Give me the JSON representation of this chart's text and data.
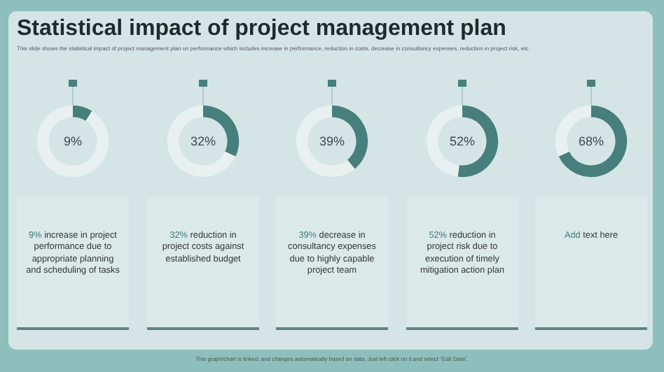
{
  "chart_data": [
    {
      "type": "other",
      "title": "Statistical impact of project management plan",
      "subtitle": "This slide shows the statistical impact of project management plan on performance which includes increase in performance, reduction in costs, decrease in consultancy expenses, reduction in project risk, etc.",
      "annotations": [
        "This graph/chart is linked, and changes automatically based on data. Just left click on it and select “Edit Data”."
      ]
    },
    {
      "type": "donut",
      "categories": [
        null,
        null
      ],
      "values": [
        9,
        91
      ],
      "colors": [
        "#467f7c",
        "#e8f0f0"
      ],
      "value_labels": [
        "9%",
        null
      ],
      "annotations": [
        "9% increase in project performance due to appropriate planning and scheduling of tasks"
      ]
    },
    {
      "type": "donut",
      "categories": [
        null,
        null
      ],
      "values": [
        32,
        68
      ],
      "colors": [
        "#467f7c",
        "#e8f0f0"
      ],
      "value_labels": [
        "32%",
        null
      ],
      "annotations": [
        "32% reduction in project costs against established budget"
      ]
    },
    {
      "type": "donut",
      "categories": [
        null,
        null
      ],
      "values": [
        39,
        61
      ],
      "colors": [
        "#467f7c",
        "#e8f0f0"
      ],
      "value_labels": [
        "39%",
        null
      ],
      "annotations": [
        "39% decrease in consultancy expenses due to highly capable project team"
      ]
    },
    {
      "type": "donut",
      "categories": [
        null,
        null
      ],
      "values": [
        52,
        48
      ],
      "colors": [
        "#467f7c",
        "#e8f0f0"
      ],
      "value_labels": [
        "52%",
        null
      ],
      "annotations": [
        "52% reduction in project risk due to execution of timely mitigation action plan"
      ]
    },
    {
      "type": "donut",
      "categories": [
        null,
        null
      ],
      "values": [
        68,
        32
      ],
      "colors": [
        "#467f7c",
        "#e8f0f0"
      ],
      "value_labels": [
        "68%",
        null
      ],
      "annotations": [
        "Add text here"
      ]
    }
  ]
}
